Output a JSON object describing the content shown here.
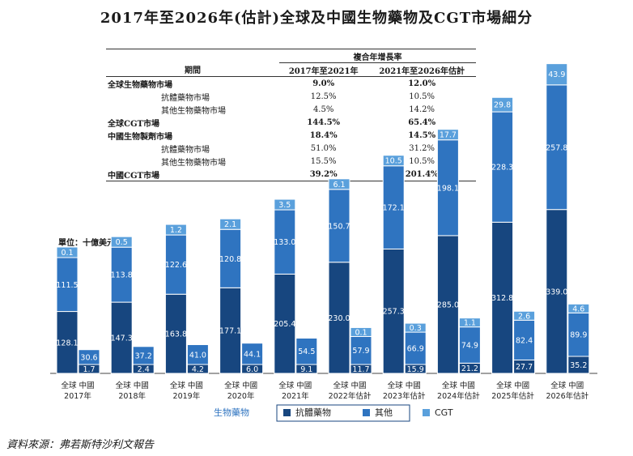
{
  "title": "2017年至2026年(估計)全球及中國生物藥物及CGT市場細分",
  "table": {
    "group_header": "複合年增長率",
    "col_period": "期間",
    "col_a": "2017年至2021年",
    "col_b": "2021年至2026年估計",
    "rows": [
      {
        "label": "全球生物藥物市場",
        "a": "9.0%",
        "b": "12.0%",
        "bold": true
      },
      {
        "label": "抗體藥物市場",
        "a": "12.5%",
        "b": "10.5%",
        "bold": false,
        "indent": true
      },
      {
        "label": "其他生物藥物市場",
        "a": "4.5%",
        "b": "14.2%",
        "bold": false,
        "indent": true
      },
      {
        "label": "全球CGT市場",
        "a": "144.5%",
        "b": "65.4%",
        "bold": true
      },
      {
        "label": "中國生物製劑市場",
        "a": "18.4%",
        "b": "14.5%",
        "bold": true
      },
      {
        "label": "抗體藥物市場",
        "a": "51.0%",
        "b": "31.2%",
        "bold": false,
        "indent": true
      },
      {
        "label": "其他生物藥物市場",
        "a": "15.5%",
        "b": "10.5%",
        "bold": false,
        "indent": true
      },
      {
        "label": "中國CGT市場",
        "a": "39.2%",
        "b": "201.4%",
        "bold": true
      }
    ]
  },
  "unit_label": "單位：十億美元",
  "legend": {
    "group_label": "生物藥物",
    "items": [
      {
        "name": "抗體藥物",
        "color": "#17467f"
      },
      {
        "name": "其他",
        "color": "#2f74c0"
      },
      {
        "name": "CGT",
        "color": "#5aa0dc"
      }
    ]
  },
  "source": "資料來源：弗若斯特沙利文報告",
  "chart_data": {
    "type": "bar",
    "stacked": true,
    "categories": [
      "2017年",
      "2018年",
      "2019年",
      "2020年",
      "2021年",
      "2022年估計",
      "2023年估計",
      "2024年估計",
      "2025年估計",
      "2026年估計"
    ],
    "sub_labels": [
      "全球",
      "中國"
    ],
    "series": [
      {
        "name": "抗體藥物",
        "color": "#17467f",
        "global": [
          128.1,
          147.3,
          163.8,
          177.1,
          205.4,
          230.0,
          257.3,
          285.0,
          312.8,
          339.0
        ],
        "china": [
          1.7,
          2.4,
          4.2,
          6.0,
          9.1,
          11.7,
          15.9,
          21.2,
          27.7,
          35.2
        ]
      },
      {
        "name": "其他",
        "color": "#2f74c0",
        "global": [
          111.5,
          113.8,
          122.6,
          120.8,
          133.0,
          150.7,
          172.1,
          198.1,
          228.3,
          257.8
        ],
        "china": [
          30.6,
          37.2,
          41.0,
          44.1,
          54.5,
          57.9,
          66.9,
          74.9,
          82.4,
          89.9
        ]
      },
      {
        "name": "CGT",
        "color": "#5aa0dc",
        "global": [
          0.1,
          0.5,
          1.2,
          2.1,
          3.5,
          6.1,
          10.5,
          17.7,
          29.8,
          43.9
        ],
        "china": [
          null,
          null,
          null,
          null,
          null,
          0.1,
          0.3,
          1.1,
          2.6,
          4.6
        ]
      }
    ]
  }
}
